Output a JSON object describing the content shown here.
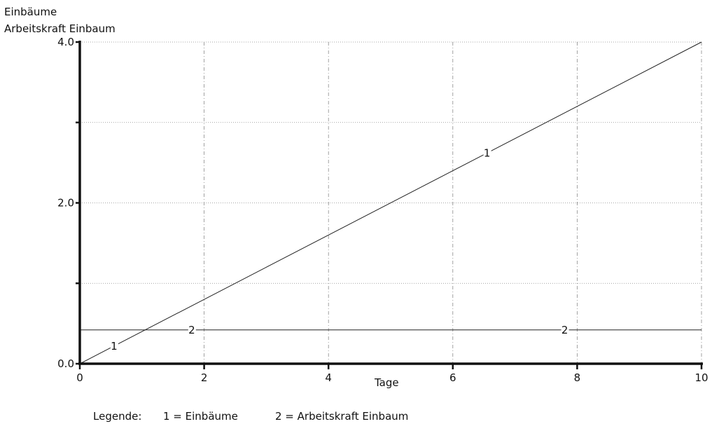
{
  "chart_data": {
    "type": "line",
    "ylabel_lines": [
      "Einbäume",
      "Arbeitskraft Einbaum"
    ],
    "xlabel": "Tage",
    "xlim": [
      0,
      10
    ],
    "ylim": [
      0,
      4
    ],
    "x_ticks": [
      0,
      2,
      4,
      6,
      8,
      10
    ],
    "x_tick_labels": [
      "0",
      "2",
      "4",
      "6",
      "8",
      "10"
    ],
    "y_ticks": [
      0,
      1,
      2,
      3,
      4
    ],
    "y_tick_labels": [
      "0.0",
      "",
      "2.0",
      "",
      "4.0"
    ],
    "grid": true,
    "series": [
      {
        "name": "1",
        "x": [
          0,
          10
        ],
        "y": [
          0,
          4.0
        ],
        "marker_x": [
          0.55,
          6.55
        ]
      },
      {
        "name": "2",
        "x": [
          0,
          10
        ],
        "y": [
          0.42,
          0.42
        ],
        "marker_x": [
          1.8,
          7.8
        ]
      }
    ],
    "legend_prefix": "Legende:",
    "legend_entries": [
      "1 = Einbäume",
      "2 = Arbeitskraft Einbaum"
    ]
  }
}
